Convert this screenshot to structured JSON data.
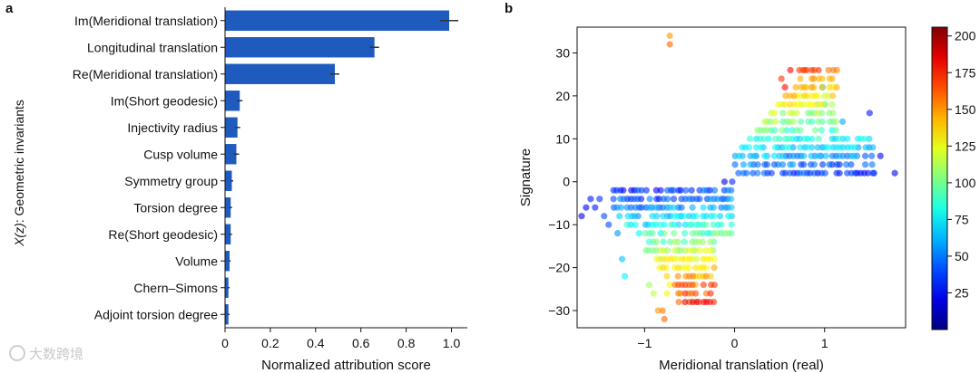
{
  "chart_data": [
    {
      "panel_label": "a",
      "type": "bar",
      "orientation": "horizontal",
      "categories": [
        "Im(Meridional translation)",
        "Longitudinal translation",
        "Re(Meridional translation)",
        "Im(Short geodesic)",
        "Injectivity radius",
        "Cusp volume",
        "Symmetry group",
        "Torsion degree",
        "Re(Short geodesic)",
        "Volume",
        "Chern–Simons",
        "Adjoint torsion degree"
      ],
      "values": [
        0.99,
        0.66,
        0.485,
        0.065,
        0.055,
        0.05,
        0.03,
        0.025,
        0.025,
        0.02,
        0.015,
        0.015
      ],
      "errors": [
        0.04,
        0.02,
        0.02,
        0.012,
        0.012,
        0.012,
        0.006,
        0.006,
        0.006,
        0.005,
        0.005,
        0.005
      ],
      "xlabel": "Normalized attribution score",
      "ylabel_italic": "X(z)",
      "ylabel_rest": ": Geometric invariants",
      "xlim": [
        0,
        1.07
      ],
      "xticks": [
        0,
        0.2,
        0.4,
        0.6,
        0.8,
        1.0
      ],
      "xtick_labels": [
        "0",
        "0.2",
        "0.4",
        "0.6",
        "0.8",
        "1.0"
      ],
      "bar_color": "#1f5bbf"
    },
    {
      "panel_label": "b",
      "type": "scatter",
      "xlabel": "Meridional translation (real)",
      "ylabel": "Signature",
      "xlim": [
        -1.75,
        1.9
      ],
      "ylim": [
        -34,
        36
      ],
      "xticks": [
        -1,
        0,
        1
      ],
      "xtick_labels": [
        "−1",
        "0",
        "1"
      ],
      "yticks": [
        -30,
        -20,
        -10,
        0,
        10,
        20,
        30
      ],
      "ytick_labels": [
        "−30",
        "−20",
        "−10",
        "0",
        "10",
        "20",
        "30"
      ],
      "colorbar": {
        "min": 0,
        "max": 206,
        "ticks": [
          25,
          50,
          75,
          100,
          125,
          150,
          175,
          200
        ],
        "colormap": "jet"
      },
      "points": [
        [
          -0.72,
          34,
          150
        ],
        [
          -0.72,
          32,
          160
        ],
        [
          -0.78,
          -32,
          160
        ],
        [
          -0.8,
          -30,
          155
        ],
        [
          -0.85,
          -30,
          150
        ],
        [
          -0.62,
          -28,
          160
        ],
        [
          -1.7,
          -8,
          20
        ],
        [
          -1.65,
          -6,
          25
        ],
        [
          -1.6,
          -4,
          30
        ],
        [
          -1.55,
          -6,
          30
        ],
        [
          -1.5,
          -4,
          35
        ],
        [
          -1.45,
          -8,
          40
        ],
        [
          -1.4,
          -10,
          40
        ],
        [
          -1.3,
          -12,
          55
        ],
        [
          -1.25,
          -18,
          65
        ],
        [
          -1.22,
          -22,
          75
        ],
        [
          -0.95,
          -24,
          110
        ],
        [
          -0.9,
          -26,
          115
        ],
        [
          -0.75,
          -26,
          130
        ],
        [
          -0.72,
          -24,
          130
        ],
        [
          -0.6,
          -26,
          150
        ],
        [
          1.5,
          16,
          30
        ],
        [
          1.78,
          2,
          20
        ],
        [
          1.62,
          6,
          25
        ],
        [
          1.55,
          2,
          22
        ],
        [
          0.72,
          26,
          170
        ],
        [
          0.76,
          26,
          160
        ],
        [
          0.62,
          26,
          180
        ],
        [
          0.52,
          24,
          170
        ],
        [
          0.56,
          22,
          180
        ],
        [
          1.0,
          18,
          90
        ],
        [
          1.2,
          14,
          60
        ],
        [
          0.98,
          22,
          80
        ]
      ]
    }
  ],
  "watermark": "大数跨境"
}
